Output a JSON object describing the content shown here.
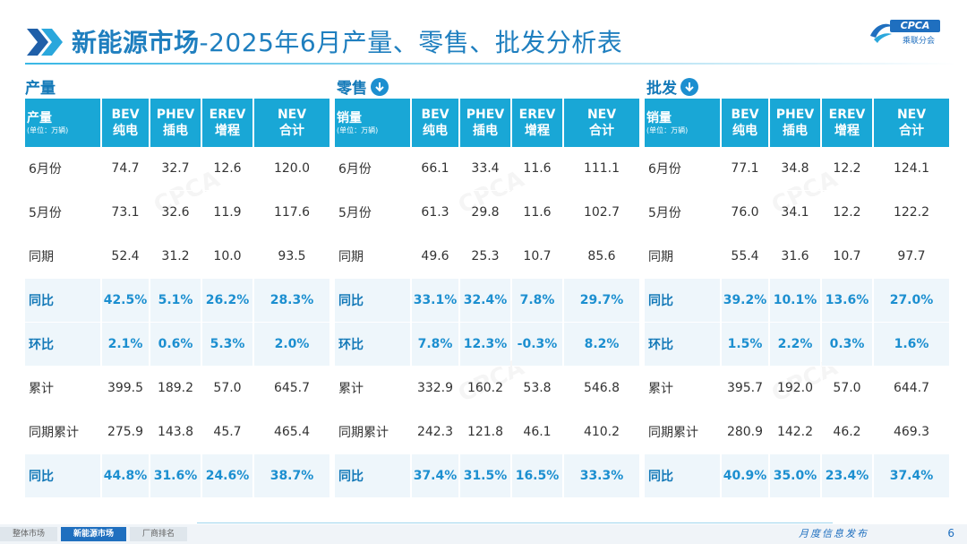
{
  "title": {
    "main": "新能源市场",
    "rest": "-2025年6月产量、零售、批发分析表"
  },
  "logo": {
    "brand": "CPCA",
    "sub": "乘联分会"
  },
  "sections": [
    {
      "label": "产量",
      "header": {
        "first": "产量",
        "unit": "(单位：万辆)",
        "cols": [
          [
            "BEV",
            "纯电"
          ],
          [
            "PHEV",
            "插电"
          ],
          [
            "EREV",
            "增程"
          ],
          [
            "NEV",
            "合计"
          ]
        ]
      },
      "rows": [
        {
          "label": "6月份",
          "values": [
            "74.7",
            "32.7",
            "12.6",
            "120.0"
          ]
        },
        {
          "label": "5月份",
          "values": [
            "73.1",
            "32.6",
            "11.9",
            "117.6"
          ]
        },
        {
          "label": "同期",
          "values": [
            "52.4",
            "31.2",
            "10.0",
            "93.5"
          ]
        },
        {
          "label": "同比",
          "values": [
            "42.5%",
            "5.1%",
            "26.2%",
            "28.3%"
          ]
        },
        {
          "label": "环比",
          "values": [
            "2.1%",
            "0.6%",
            "5.3%",
            "2.0%"
          ]
        },
        {
          "label": "累计",
          "values": [
            "399.5",
            "189.2",
            "57.0",
            "645.7"
          ]
        },
        {
          "label": "同期累计",
          "values": [
            "275.9",
            "143.8",
            "45.7",
            "465.4"
          ]
        },
        {
          "label": "同比",
          "values": [
            "44.8%",
            "31.6%",
            "24.6%",
            "38.7%"
          ]
        }
      ]
    },
    {
      "label": "零售",
      "header": {
        "first": "销量",
        "unit": "(单位：万辆)",
        "cols": [
          [
            "BEV",
            "纯电"
          ],
          [
            "PHEV",
            "插电"
          ],
          [
            "EREV",
            "增程"
          ],
          [
            "NEV",
            "合计"
          ]
        ]
      },
      "rows": [
        {
          "label": "6月份",
          "values": [
            "66.1",
            "33.4",
            "11.6",
            "111.1"
          ]
        },
        {
          "label": "5月份",
          "values": [
            "61.3",
            "29.8",
            "11.6",
            "102.7"
          ]
        },
        {
          "label": "同期",
          "values": [
            "49.6",
            "25.3",
            "10.7",
            "85.6"
          ]
        },
        {
          "label": "同比",
          "values": [
            "33.1%",
            "32.4%",
            "7.8%",
            "29.7%"
          ]
        },
        {
          "label": "环比",
          "values": [
            "7.8%",
            "12.3%",
            "-0.3%",
            "8.2%"
          ]
        },
        {
          "label": "累计",
          "values": [
            "332.9",
            "160.2",
            "53.8",
            "546.8"
          ]
        },
        {
          "label": "同期累计",
          "values": [
            "242.3",
            "121.8",
            "46.1",
            "410.2"
          ]
        },
        {
          "label": "同比",
          "values": [
            "37.4%",
            "31.5%",
            "16.5%",
            "33.3%"
          ]
        }
      ]
    },
    {
      "label": "批发",
      "header": {
        "first": "销量",
        "unit": "(单位：万辆)",
        "cols": [
          [
            "BEV",
            "纯电"
          ],
          [
            "PHEV",
            "插电"
          ],
          [
            "EREV",
            "增程"
          ],
          [
            "NEV",
            "合计"
          ]
        ]
      },
      "rows": [
        {
          "label": "6月份",
          "values": [
            "77.1",
            "34.8",
            "12.2",
            "124.1"
          ]
        },
        {
          "label": "5月份",
          "values": [
            "76.0",
            "34.1",
            "12.2",
            "122.2"
          ]
        },
        {
          "label": "同期",
          "values": [
            "55.4",
            "31.6",
            "10.7",
            "97.7"
          ]
        },
        {
          "label": "同比",
          "values": [
            "39.2%",
            "10.1%",
            "13.6%",
            "27.0%"
          ]
        },
        {
          "label": "环比",
          "values": [
            "1.5%",
            "2.2%",
            "0.3%",
            "1.6%"
          ]
        },
        {
          "label": "累计",
          "values": [
            "395.7",
            "192.0",
            "57.0",
            "644.7"
          ]
        },
        {
          "label": "同期累计",
          "values": [
            "280.9",
            "142.2",
            "46.2",
            "469.3"
          ]
        },
        {
          "label": "同比",
          "values": [
            "40.9%",
            "35.0%",
            "23.4%",
            "37.4%"
          ]
        }
      ]
    }
  ],
  "footer": {
    "tabs": [
      "整体市场",
      "新能源市场",
      "厂商排名"
    ],
    "active_tab": 1,
    "tagline": "月度信息发布",
    "page": "6"
  },
  "colors": {
    "accent": "#19a7d6",
    "title": "#1f7fbf",
    "highlight": "#1c8fd0"
  }
}
